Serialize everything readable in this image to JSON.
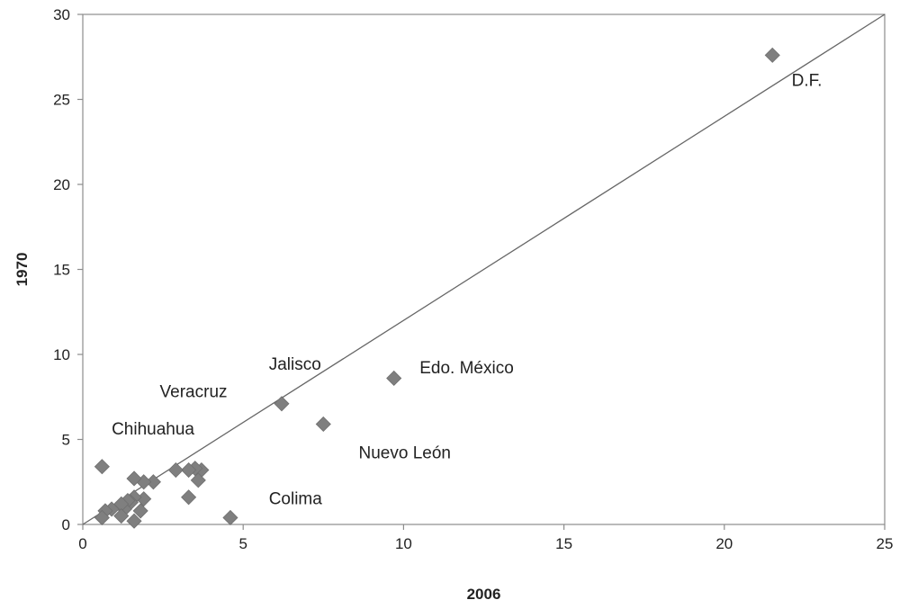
{
  "chart_data": {
    "type": "scatter",
    "title": "",
    "xlabel": "2006",
    "ylabel": "1970",
    "xlim": [
      0,
      25
    ],
    "ylim": [
      0,
      30
    ],
    "xticks": [
      0,
      5,
      10,
      15,
      20,
      25
    ],
    "yticks": [
      0,
      5,
      10,
      15,
      20,
      25,
      30
    ],
    "grid": false,
    "legend": "none",
    "marker_color": "#7f7f7f",
    "line_color": "#666666",
    "reference_line": {
      "from": [
        0,
        0
      ],
      "to": [
        25,
        30
      ]
    },
    "points": [
      {
        "x": 21.5,
        "y": 27.6
      },
      {
        "x": 9.7,
        "y": 8.6
      },
      {
        "x": 7.5,
        "y": 5.9
      },
      {
        "x": 6.2,
        "y": 7.1
      },
      {
        "x": 4.6,
        "y": 0.4
      },
      {
        "x": 3.7,
        "y": 3.2
      },
      {
        "x": 3.6,
        "y": 2.6
      },
      {
        "x": 3.5,
        "y": 3.3
      },
      {
        "x": 3.3,
        "y": 3.2
      },
      {
        "x": 3.3,
        "y": 1.6
      },
      {
        "x": 2.9,
        "y": 3.2
      },
      {
        "x": 2.2,
        "y": 2.5
      },
      {
        "x": 1.9,
        "y": 2.5
      },
      {
        "x": 1.9,
        "y": 1.5
      },
      {
        "x": 1.8,
        "y": 0.8
      },
      {
        "x": 1.6,
        "y": 2.7
      },
      {
        "x": 1.6,
        "y": 1.6
      },
      {
        "x": 1.6,
        "y": 0.2
      },
      {
        "x": 1.5,
        "y": 1.3
      },
      {
        "x": 1.4,
        "y": 1.4
      },
      {
        "x": 1.3,
        "y": 0.9
      },
      {
        "x": 1.2,
        "y": 1.2
      },
      {
        "x": 1.2,
        "y": 0.5
      },
      {
        "x": 0.9,
        "y": 0.9
      },
      {
        "x": 0.7,
        "y": 0.8
      },
      {
        "x": 0.6,
        "y": 3.4
      },
      {
        "x": 0.6,
        "y": 0.4
      }
    ],
    "annotations": [
      {
        "text": "D.F.",
        "x": 22.1,
        "y": 25.8
      },
      {
        "text": "Edo. México",
        "x": 10.5,
        "y": 8.9
      },
      {
        "text": "Jalisco",
        "x": 5.8,
        "y": 9.1
      },
      {
        "text": "Veracruz",
        "x": 2.4,
        "y": 7.5
      },
      {
        "text": "Chihuahua",
        "x": 0.9,
        "y": 5.3
      },
      {
        "text": "Nuevo León",
        "x": 8.6,
        "y": 3.9
      },
      {
        "text": "Colima",
        "x": 5.8,
        "y": 1.2
      }
    ]
  }
}
